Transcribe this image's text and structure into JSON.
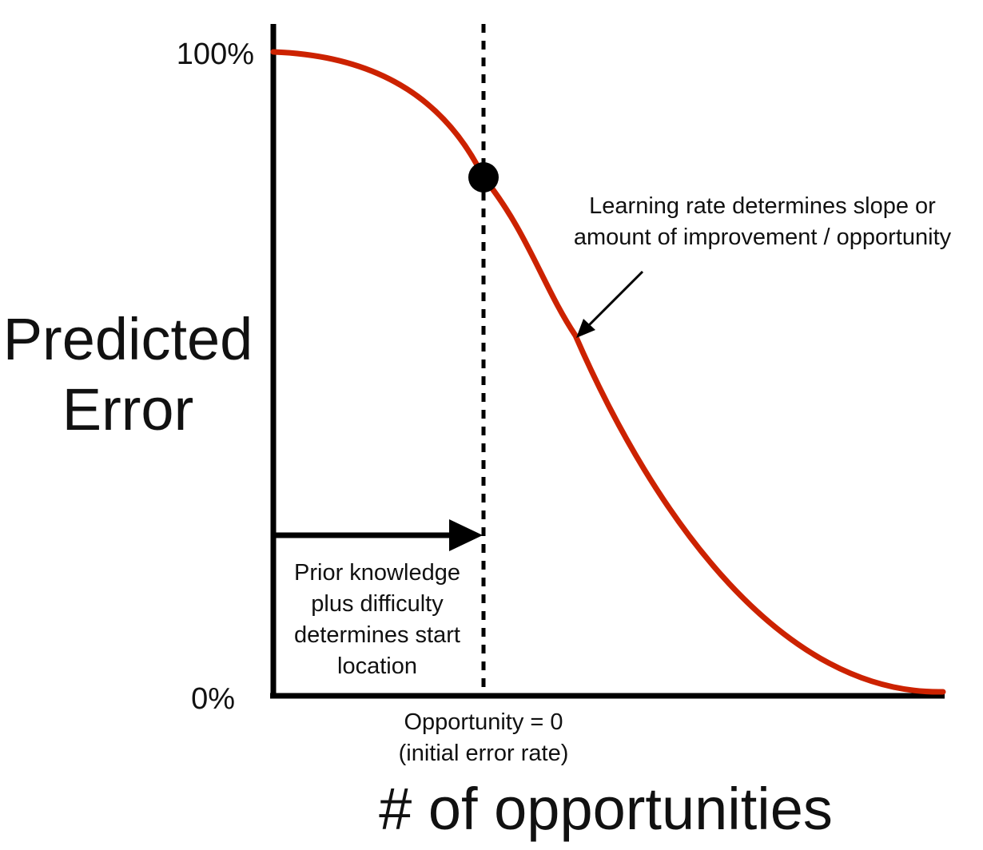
{
  "diagram": {
    "y_axis": {
      "title_lines": [
        "Predicted",
        "Error"
      ],
      "top_tick": "100%",
      "bottom_tick": "0%"
    },
    "x_axis": {
      "title": "# of opportunities"
    },
    "start_marker": {
      "label_lines": [
        "Opportunity = 0",
        "(initial error rate)"
      ]
    },
    "prior_knowledge_note": {
      "lines": [
        "Prior knowledge",
        "plus difficulty",
        "determines start",
        "location"
      ]
    },
    "learning_rate_note": {
      "lines": [
        "Learning rate determines slope or",
        "amount of improvement / opportunity"
      ]
    },
    "colors": {
      "curve": "#cc2200",
      "axes": "#000000",
      "text": "#111111"
    }
  }
}
